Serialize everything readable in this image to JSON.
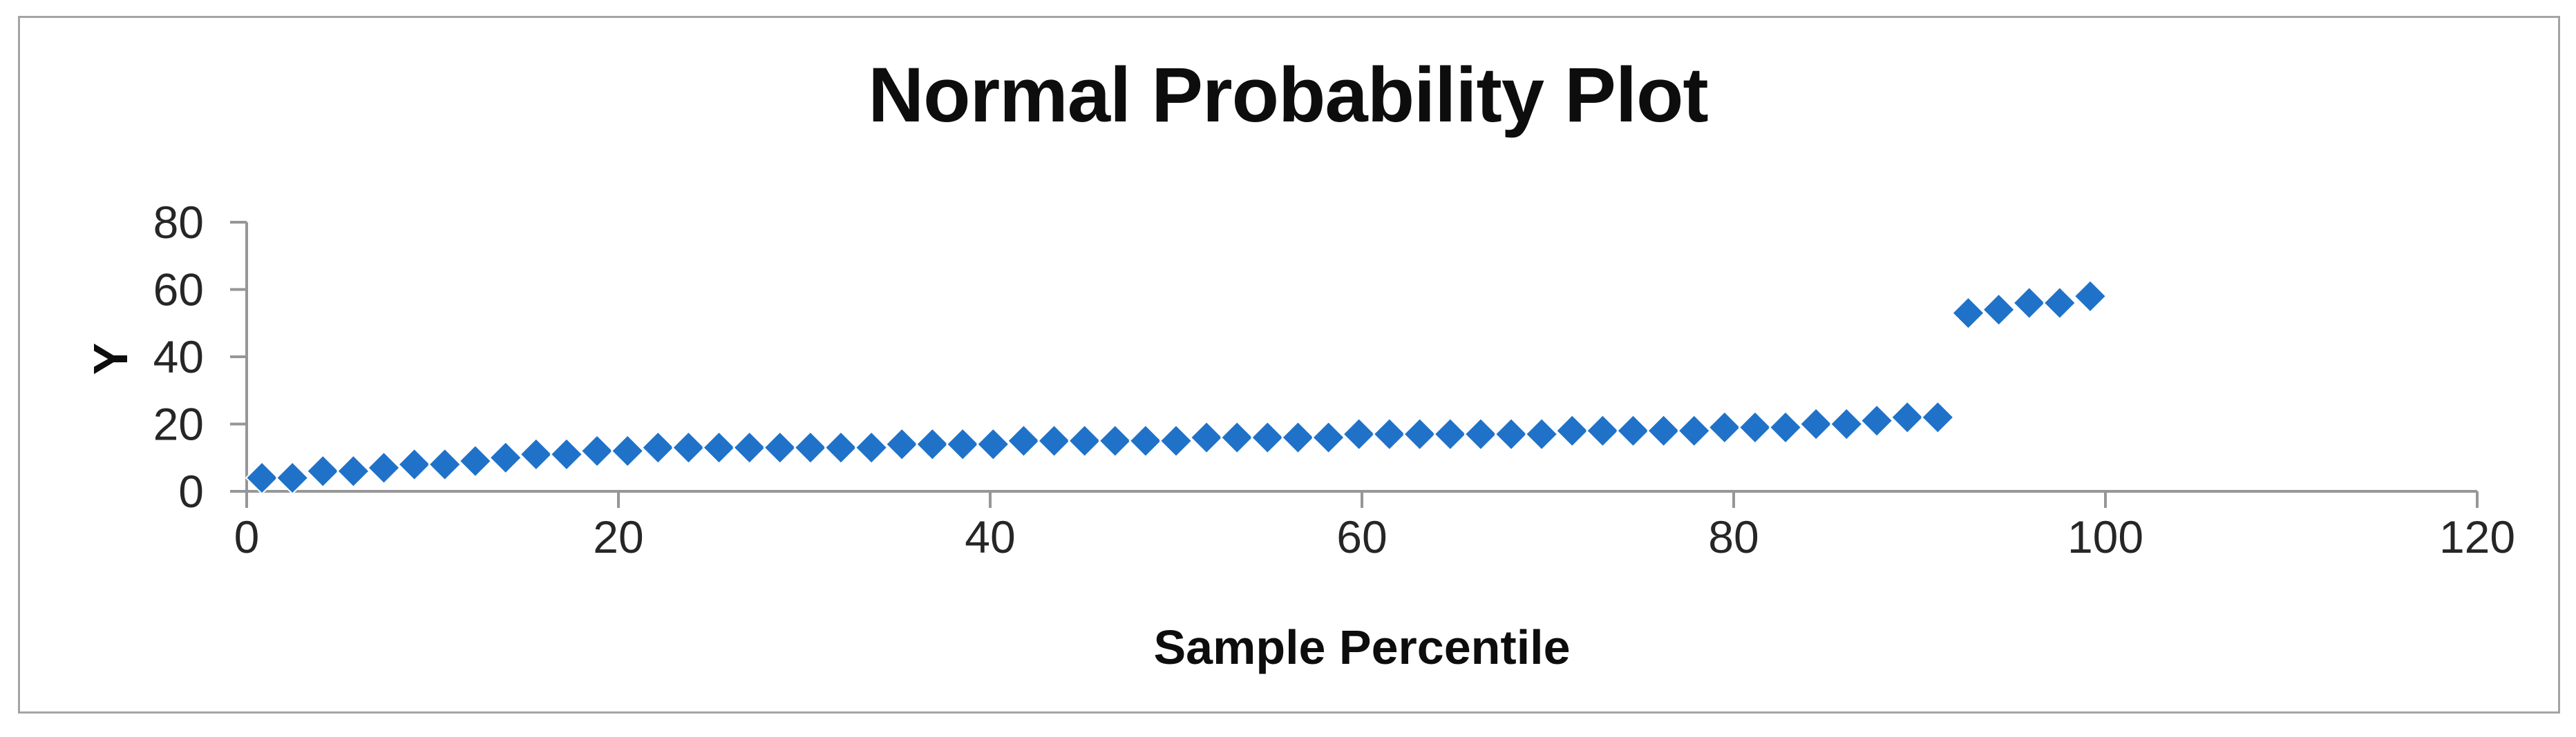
{
  "chart_data": {
    "type": "scatter",
    "title": "Normal Probability Plot",
    "xlabel": "Sample Percentile",
    "ylabel": "Y",
    "xlim": [
      0,
      120
    ],
    "ylim": [
      0,
      80
    ],
    "x_ticks": [
      0,
      20,
      40,
      60,
      80,
      100,
      120
    ],
    "y_ticks": [
      0,
      20,
      40,
      60,
      80
    ],
    "grid": false,
    "legend": false,
    "marker": "diamond",
    "series": [
      {
        "name": "Y",
        "x": [
          0.82,
          2.46,
          4.1,
          5.74,
          7.38,
          9.02,
          10.66,
          12.3,
          13.93,
          15.57,
          17.21,
          18.85,
          20.49,
          22.13,
          23.77,
          25.41,
          27.05,
          28.69,
          30.33,
          31.97,
          33.61,
          35.25,
          36.89,
          38.52,
          40.16,
          41.8,
          43.44,
          45.08,
          46.72,
          48.36,
          50.0,
          51.64,
          53.28,
          54.92,
          56.56,
          58.2,
          59.84,
          61.48,
          63.11,
          64.75,
          66.39,
          68.03,
          69.67,
          71.31,
          72.95,
          74.59,
          76.23,
          77.87,
          79.51,
          81.15,
          82.79,
          84.43,
          86.07,
          87.7,
          89.34,
          90.98,
          92.62,
          94.26,
          95.9,
          97.54,
          99.18
        ],
        "y": [
          4,
          4,
          6,
          6,
          7,
          8,
          8,
          9,
          10,
          11,
          11,
          12,
          12,
          13,
          13,
          13,
          13,
          13,
          13,
          13,
          13,
          14,
          14,
          14,
          14,
          15,
          15,
          15,
          15,
          15,
          15,
          16,
          16,
          16,
          16,
          16,
          17,
          17,
          17,
          17,
          17,
          17,
          17,
          18,
          18,
          18,
          18,
          18,
          19,
          19,
          19,
          20,
          20,
          21,
          22,
          22,
          53,
          54,
          56,
          56,
          58
        ]
      }
    ]
  },
  "colors": {
    "marker_fill": "#1F72C8",
    "marker_edge": "#FFFFFF",
    "axis_line": "#969696",
    "tick_label": "#262626",
    "title_text": "#0D0D0D",
    "frame_border": "#A4A4A4",
    "background": "#FFFFFF"
  }
}
